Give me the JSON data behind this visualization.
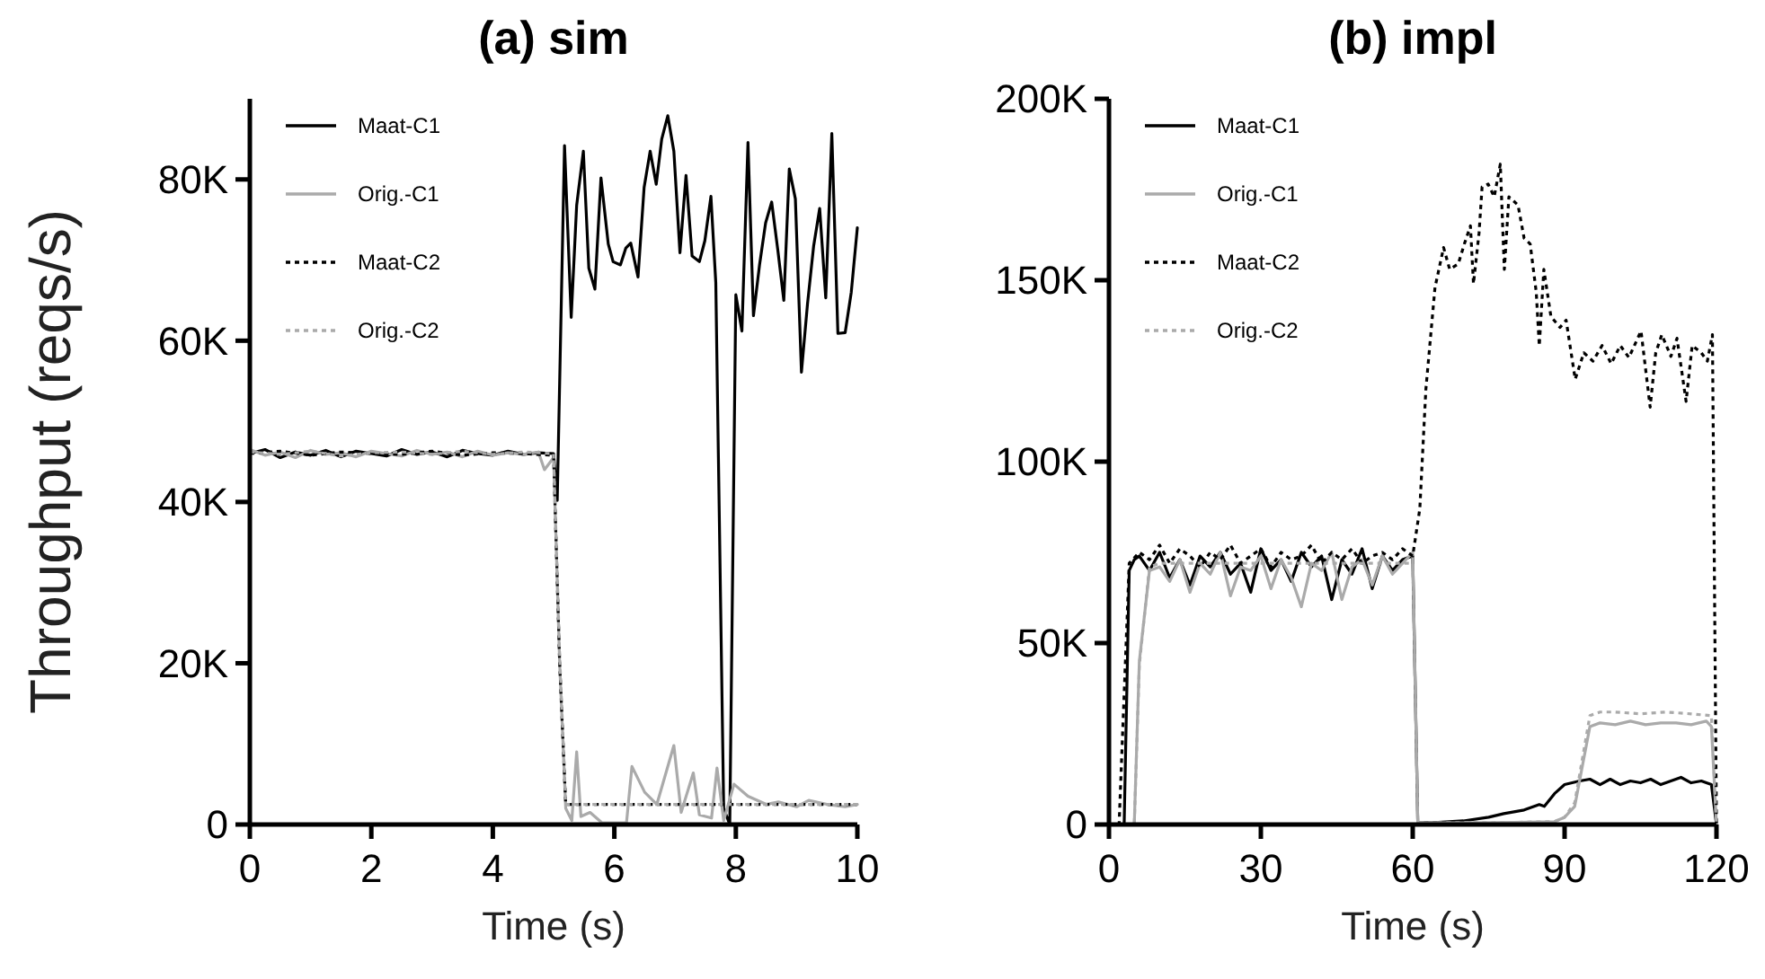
{
  "chart_data": [
    {
      "type": "line",
      "title": "(a) sim",
      "xlabel": "Time (s)",
      "ylabel": "Throughput (reqs/s)",
      "xlim": [
        0,
        10
      ],
      "xticks": [
        0,
        2,
        4,
        6,
        8,
        10
      ],
      "ylim": [
        0,
        90000
      ],
      "yticks": [
        {
          "value": 0,
          "label": "0"
        },
        {
          "value": 20000,
          "label": "20K"
        },
        {
          "value": 40000,
          "label": "40K"
        },
        {
          "value": 60000,
          "label": "60K"
        },
        {
          "value": 80000,
          "label": "80K"
        }
      ],
      "legend": "top left",
      "grid": false,
      "series": [
        {
          "name": "Maat-C1",
          "color": "#000000",
          "line_style": "solid",
          "x": [
            0,
            0.25,
            0.5,
            0.75,
            1,
            1.25,
            1.5,
            1.75,
            2,
            2.25,
            2.5,
            2.75,
            3,
            3.25,
            3.5,
            3.75,
            4,
            4.25,
            4.5,
            4.75,
            5,
            5.06,
            5.18,
            5.29,
            5.38,
            5.49,
            5.58,
            5.68,
            5.78,
            5.9,
            5.98,
            6.1,
            6.19,
            6.27,
            6.39,
            6.49,
            6.59,
            6.69,
            6.78,
            6.88,
            6.98,
            7.08,
            7.18,
            7.28,
            7.4,
            7.49,
            7.59,
            7.67,
            7.8,
            7.9,
            8,
            8.1,
            8.2,
            8.29,
            8.39,
            8.49,
            8.59,
            8.69,
            8.79,
            8.88,
            8.98,
            9.08,
            9.18,
            9.28,
            9.38,
            9.48,
            9.58,
            9.68,
            9.8,
            9.9,
            10
          ],
          "values": [
            46000,
            46500,
            45500,
            46200,
            45800,
            46400,
            45600,
            46300,
            46000,
            45700,
            46500,
            45900,
            46200,
            45600,
            46400,
            46000,
            45800,
            46300,
            45900,
            46100,
            46000,
            40200,
            84200,
            62900,
            76800,
            83500,
            69000,
            66400,
            80200,
            72000,
            69800,
            69400,
            71500,
            72100,
            67900,
            79000,
            83500,
            79400,
            85000,
            87900,
            83500,
            70900,
            80500,
            70500,
            69800,
            72400,
            77900,
            67200,
            2000,
            0,
            65700,
            61200,
            84600,
            63100,
            69400,
            74600,
            77200,
            71300,
            65000,
            81300,
            77600,
            56100,
            64600,
            71700,
            76400,
            65300,
            85700,
            60900,
            61000,
            66000,
            74000
          ]
        },
        {
          "name": "Orig.-C1",
          "color": "#aaaaaa",
          "line_style": "solid",
          "x": [
            0,
            0.25,
            0.5,
            0.75,
            1,
            1.25,
            1.5,
            1.75,
            2,
            2.25,
            2.5,
            2.75,
            3,
            3.25,
            3.5,
            3.75,
            4,
            4.25,
            4.5,
            4.75,
            4.85,
            5,
            5.1,
            5.2,
            5.3,
            5.38,
            5.45,
            5.6,
            5.8,
            6.2,
            6.29,
            6.5,
            6.7,
            6.98,
            7.1,
            7.3,
            7.4,
            7.6,
            7.69,
            7.8,
            7.97,
            8.2,
            8.5,
            8.7,
            9,
            9.2,
            9.5,
            9.8,
            10
          ],
          "values": [
            46500,
            45800,
            46200,
            45500,
            46400,
            45900,
            46100,
            45600,
            46300,
            46000,
            45700,
            46400,
            45900,
            46200,
            45600,
            46300,
            45800,
            46100,
            45900,
            46200,
            44000,
            45500,
            20000,
            2000,
            500,
            9000,
            1000,
            1500,
            200,
            200,
            7200,
            4000,
            2500,
            9800,
            1500,
            6400,
            1200,
            800,
            7000,
            500,
            5000,
            3500,
            2500,
            2800,
            2200,
            3000,
            2500,
            2200,
            2500
          ]
        },
        {
          "name": "Maat-C2",
          "color": "#000000",
          "line_style": "dotted",
          "x": [
            0,
            0.5,
            1,
            1.5,
            2,
            2.5,
            3,
            3.5,
            4,
            4.5,
            5,
            5.1,
            5.2,
            5.5,
            6,
            7,
            8,
            9,
            10
          ],
          "values": [
            46000,
            46300,
            45800,
            46200,
            46000,
            45900,
            46300,
            45800,
            46100,
            46000,
            45800,
            20000,
            2500,
            2500,
            2500,
            2500,
            2500,
            2500,
            2500
          ]
        },
        {
          "name": "Orig.-C2",
          "color": "#aaaaaa",
          "line_style": "dotted",
          "x": [
            0,
            0.5,
            1,
            1.5,
            2,
            2.5,
            3,
            3.5,
            4,
            4.5,
            5,
            5.1,
            5.2,
            5.5,
            6,
            7,
            8,
            9,
            10
          ],
          "values": [
            46200,
            45900,
            46300,
            45700,
            46100,
            46200,
            45900,
            46300,
            45900,
            46200,
            46000,
            21000,
            2500,
            2500,
            2500,
            2500,
            2500,
            2500,
            2500
          ]
        }
      ]
    },
    {
      "type": "line",
      "title": "(b) impl",
      "xlabel": "Time (s)",
      "xlim": [
        0,
        120
      ],
      "xticks": [
        0,
        30,
        60,
        90,
        120
      ],
      "ylim": [
        0,
        200000
      ],
      "yticks": [
        {
          "value": 0,
          "label": "0"
        },
        {
          "value": 50000,
          "label": "50K"
        },
        {
          "value": 100000,
          "label": "100K"
        },
        {
          "value": 150000,
          "label": "150K"
        },
        {
          "value": 200000,
          "label": "200K"
        }
      ],
      "legend": "top left",
      "grid": false,
      "series": [
        {
          "name": "Maat-C1",
          "color": "#000000",
          "line_style": "solid",
          "x": [
            0,
            3,
            4,
            5,
            6,
            8,
            10,
            12,
            14,
            16,
            18,
            20,
            22,
            24,
            26,
            28,
            30,
            32,
            34,
            36,
            38,
            40,
            42,
            44,
            46,
            48,
            50,
            52,
            54,
            56,
            58,
            60,
            61,
            65,
            70,
            75,
            78,
            82,
            85,
            86,
            88,
            90,
            93,
            95,
            97,
            99,
            101,
            103,
            105,
            107,
            109,
            111,
            113,
            115,
            117,
            119,
            120
          ],
          "values": [
            0,
            0,
            70000,
            73000,
            74000,
            70000,
            75000,
            68000,
            73000,
            66000,
            74000,
            71000,
            75000,
            69000,
            72000,
            64000,
            76000,
            70000,
            73000,
            67000,
            75000,
            71000,
            74000,
            62000,
            73000,
            69000,
            76000,
            65000,
            74000,
            70000,
            73000,
            74000,
            500,
            600,
            1000,
            2000,
            3000,
            4000,
            5500,
            5000,
            8500,
            11000,
            12000,
            12500,
            11000,
            12500,
            11000,
            12000,
            11500,
            12500,
            11000,
            12000,
            13000,
            11500,
            12000,
            11000,
            0
          ]
        },
        {
          "name": "Orig.-C1",
          "color": "#aaaaaa",
          "line_style": "solid",
          "x": [
            0,
            5,
            6,
            8,
            10,
            12,
            14,
            16,
            18,
            20,
            22,
            24,
            26,
            28,
            30,
            32,
            34,
            36,
            38,
            40,
            42,
            44,
            46,
            48,
            50,
            52,
            54,
            56,
            58,
            60,
            61,
            70,
            80,
            88,
            90,
            92,
            95,
            97,
            100,
            103,
            106,
            109,
            112,
            115,
            118,
            119,
            120
          ],
          "values": [
            0,
            0,
            45000,
            70000,
            71000,
            67000,
            73000,
            64000,
            72000,
            69000,
            75000,
            63000,
            71000,
            70000,
            74000,
            65000,
            73000,
            68000,
            60000,
            72000,
            70000,
            75000,
            62000,
            71000,
            73000,
            66000,
            74000,
            69000,
            72000,
            75000,
            500,
            500,
            600,
            800,
            2000,
            5000,
            27000,
            28000,
            27500,
            28500,
            27500,
            28000,
            28000,
            27500,
            28500,
            27000,
            0
          ]
        },
        {
          "name": "Maat-C2",
          "color": "#000000",
          "line_style": "dotted",
          "x": [
            0,
            2,
            4,
            6,
            8,
            10,
            12,
            14,
            16,
            18,
            20,
            22,
            24,
            26,
            28,
            30,
            32,
            34,
            36,
            38,
            40,
            42,
            44,
            46,
            48,
            50,
            52,
            54,
            56,
            58,
            60,
            61.4,
            62.6,
            64.4,
            66.1,
            67.3,
            69,
            70.2,
            71.4,
            72,
            73.1,
            73.7,
            74.9,
            76.1,
            77.3,
            78.1,
            79,
            80.8,
            82,
            83.2,
            84.4,
            85,
            85.9,
            87.3,
            89.1,
            90.3,
            92.1,
            93.8,
            95.6,
            97.4,
            99.2,
            101,
            102.7,
            105.1,
            106.9,
            108,
            109.2,
            111,
            112.2,
            114,
            115.2,
            117,
            118.2,
            119.2,
            120
          ],
          "values": [
            0,
            0,
            72000,
            75000,
            73000,
            77000,
            72000,
            76000,
            74000,
            71000,
            75000,
            73000,
            77000,
            72000,
            74000,
            76000,
            71000,
            75000,
            73000,
            74000,
            77000,
            72000,
            75000,
            73000,
            76000,
            72000,
            74000,
            75000,
            73000,
            76000,
            74000,
            87000,
            120000,
            148000,
            159000,
            153000,
            154500,
            160000,
            165000,
            149000,
            163000,
            175700,
            176500,
            173000,
            182000,
            153000,
            173000,
            170700,
            161600,
            160000,
            146700,
            131900,
            153000,
            140000,
            137000,
            139000,
            122700,
            130000,
            127700,
            132000,
            127000,
            132000,
            128700,
            136000,
            115000,
            130000,
            135000,
            129000,
            134000,
            116600,
            132000,
            130000,
            127700,
            135000,
            0
          ]
        },
        {
          "name": "Orig.-C2",
          "color": "#aaaaaa",
          "line_style": "dotted",
          "x": [
            0,
            5,
            6,
            8,
            10,
            20,
            30,
            40,
            50,
            60,
            61,
            70,
            80,
            88,
            90,
            92,
            95,
            97,
            100,
            105,
            110,
            115,
            119,
            120
          ],
          "values": [
            0,
            0,
            44000,
            71000,
            72000,
            72000,
            72000,
            72000,
            72000,
            72000,
            500,
            500,
            600,
            800,
            2000,
            6000,
            30000,
            31000,
            31000,
            30500,
            31000,
            30500,
            30000,
            0
          ]
        }
      ]
    }
  ]
}
